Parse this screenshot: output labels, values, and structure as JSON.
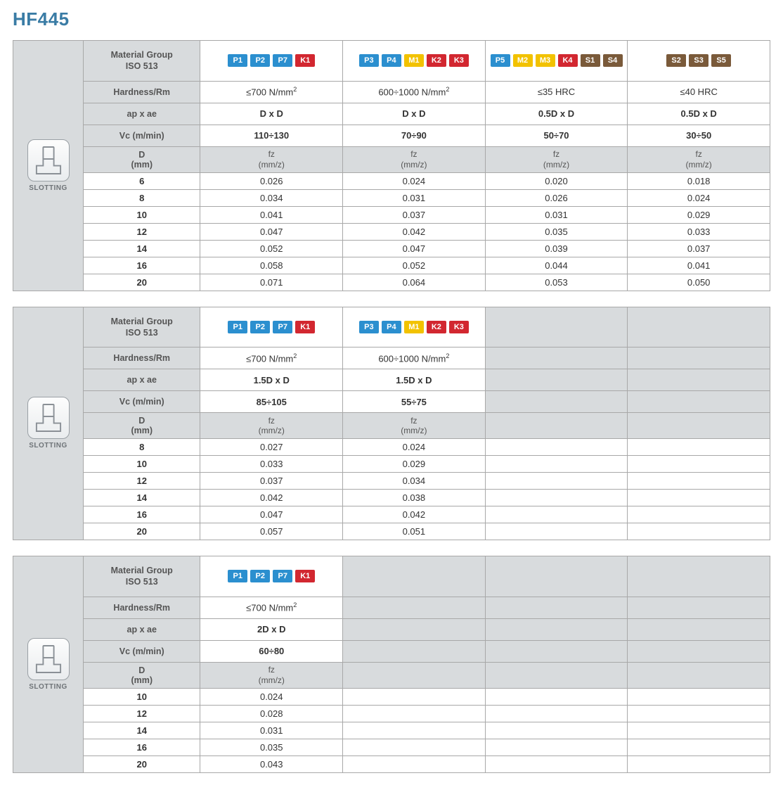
{
  "title": "HF445",
  "operation_label": "SLOTTING",
  "labels": {
    "material_group": "Material Group<br>ISO 513",
    "hardness": "Hardness/Rm",
    "ap_ae": "ap x ae",
    "vc": "Vc (m/min)",
    "d": "D<br>(mm)",
    "fz": "fz<br>(mm/z)"
  },
  "chip_colors": {
    "P": "#2b8fcf",
    "M": "#f2c200",
    "K": "#d22730",
    "S": "#7a5a3a"
  },
  "tables": [
    {
      "num_cols": 4,
      "columns": [
        {
          "chips": [
            "P1",
            "P2",
            "P7",
            "K1"
          ],
          "hardness": "≤700 N/mm<sup>2</sup>",
          "ap_ae": "D x D",
          "vc": "110÷130"
        },
        {
          "chips": [
            "P3",
            "P4",
            "M1",
            "K2",
            "K3"
          ],
          "hardness": "600÷1000 N/mm<sup>2</sup>",
          "ap_ae": "D x D",
          "vc": "70÷90"
        },
        {
          "chips": [
            "P5",
            "M2",
            "M3",
            "K4",
            "S1",
            "S4"
          ],
          "hardness": "≤35 HRC",
          "ap_ae": "0.5D x D",
          "vc": "50÷70"
        },
        {
          "chips": [
            "S2",
            "S3",
            "S5"
          ],
          "hardness": "≤40 HRC",
          "ap_ae": "0.5D x D",
          "vc": "30÷50"
        }
      ],
      "rows": [
        {
          "d": "6",
          "fz": [
            "0.026",
            "0.024",
            "0.020",
            "0.018"
          ]
        },
        {
          "d": "8",
          "fz": [
            "0.034",
            "0.031",
            "0.026",
            "0.024"
          ]
        },
        {
          "d": "10",
          "fz": [
            "0.041",
            "0.037",
            "0.031",
            "0.029"
          ]
        },
        {
          "d": "12",
          "fz": [
            "0.047",
            "0.042",
            "0.035",
            "0.033"
          ]
        },
        {
          "d": "14",
          "fz": [
            "0.052",
            "0.047",
            "0.039",
            "0.037"
          ]
        },
        {
          "d": "16",
          "fz": [
            "0.058",
            "0.052",
            "0.044",
            "0.041"
          ]
        },
        {
          "d": "20",
          "fz": [
            "0.071",
            "0.064",
            "0.053",
            "0.050"
          ]
        }
      ]
    },
    {
      "num_cols": 4,
      "columns": [
        {
          "chips": [
            "P1",
            "P2",
            "P7",
            "K1"
          ],
          "hardness": "≤700 N/mm<sup>2</sup>",
          "ap_ae": "1.5D x D",
          "vc": "85÷105"
        },
        {
          "chips": [
            "P3",
            "P4",
            "M1",
            "K2",
            "K3"
          ],
          "hardness": "600÷1000 N/mm<sup>2</sup>",
          "ap_ae": "1.5D x D",
          "vc": "55÷75"
        },
        {
          "empty": true
        },
        {
          "empty": true
        }
      ],
      "rows": [
        {
          "d": "8",
          "fz": [
            "0.027",
            "0.024",
            "",
            ""
          ]
        },
        {
          "d": "10",
          "fz": [
            "0.033",
            "0.029",
            "",
            ""
          ]
        },
        {
          "d": "12",
          "fz": [
            "0.037",
            "0.034",
            "",
            ""
          ]
        },
        {
          "d": "14",
          "fz": [
            "0.042",
            "0.038",
            "",
            ""
          ]
        },
        {
          "d": "16",
          "fz": [
            "0.047",
            "0.042",
            "",
            ""
          ]
        },
        {
          "d": "20",
          "fz": [
            "0.057",
            "0.051",
            "",
            ""
          ]
        }
      ]
    },
    {
      "num_cols": 4,
      "columns": [
        {
          "chips": [
            "P1",
            "P2",
            "P7",
            "K1"
          ],
          "hardness": "≤700 N/mm<sup>2</sup>",
          "ap_ae": "2D x D",
          "vc": "60÷80"
        },
        {
          "empty": true
        },
        {
          "empty": true
        },
        {
          "empty": true
        }
      ],
      "rows": [
        {
          "d": "10",
          "fz": [
            "0.024",
            "",
            "",
            ""
          ]
        },
        {
          "d": "12",
          "fz": [
            "0.028",
            "",
            "",
            ""
          ]
        },
        {
          "d": "14",
          "fz": [
            "0.031",
            "",
            "",
            ""
          ]
        },
        {
          "d": "16",
          "fz": [
            "0.035",
            "",
            "",
            ""
          ]
        },
        {
          "d": "20",
          "fz": [
            "0.043",
            "",
            "",
            ""
          ]
        }
      ]
    }
  ]
}
